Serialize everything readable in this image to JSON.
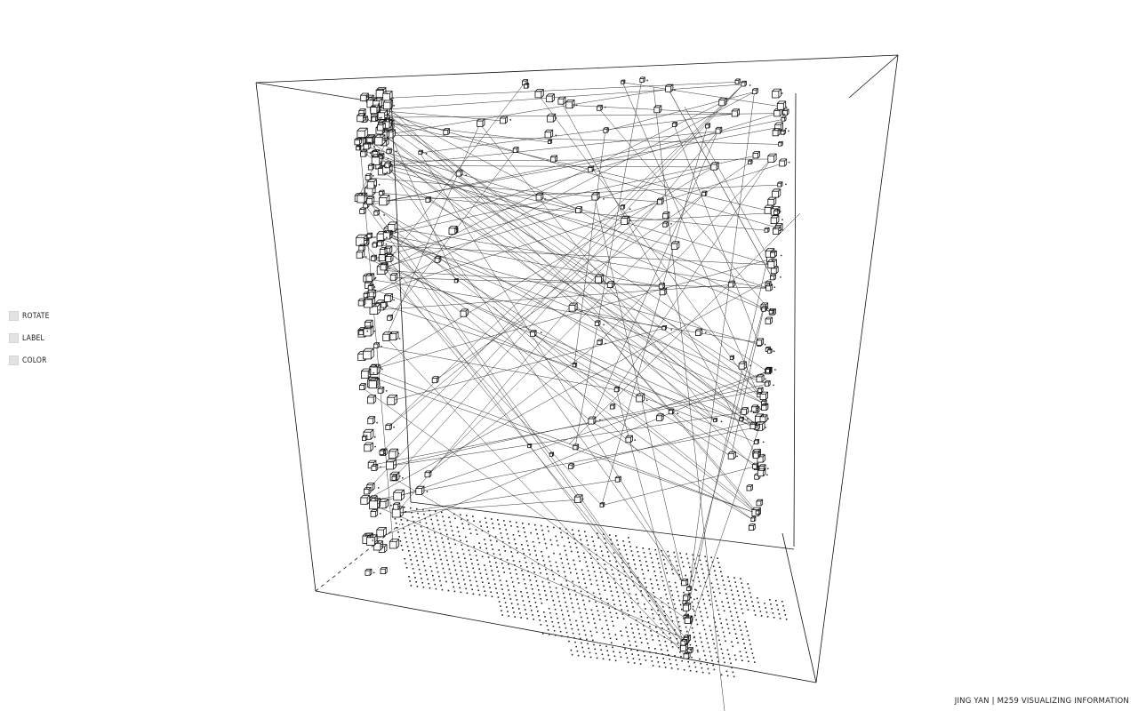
{
  "controls": {
    "rotate": "ROTATE",
    "label": "LABEL",
    "color": "COLOR"
  },
  "credit": "JING YAN | M259 VISUALIZING INFORMATION",
  "colors": {
    "background": "#ffffff",
    "ink": "#111111",
    "control_box": "#e2e2e2"
  }
}
